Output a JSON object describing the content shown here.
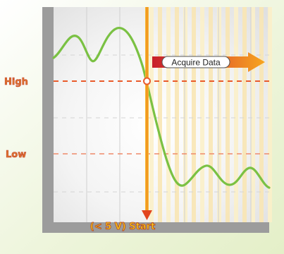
{
  "labels": {
    "high": "High",
    "low": "Low",
    "acquire": "Acquire Data",
    "start": "(< 5 V) Start"
  },
  "colors": {
    "signal": "#7ac143",
    "threshold": "#e95b2b",
    "trigger": "#f2a51a",
    "label_text": "#e07a2e",
    "label_stroke": "#c0392b",
    "start_text": "#f6d21b",
    "arrow_red": "#c8202a",
    "arrow_orange": "#f39a1c"
  }
}
